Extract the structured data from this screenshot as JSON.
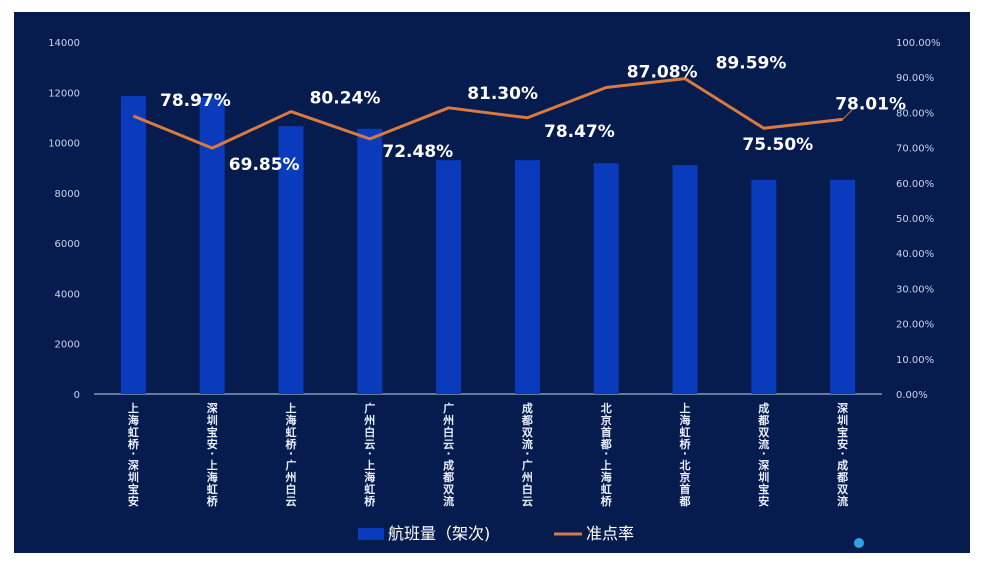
{
  "chart_data": {
    "type": "bar",
    "categories": [
      "上海虹桥-深圳宝安",
      "深圳宝安-上海虹桥",
      "上海虹桥-广州白云",
      "广州白云-上海虹桥",
      "广州白云-成都双流",
      "成都双流-广州白云",
      "北京首都-上海虹桥",
      "上海虹桥-北京首都",
      "成都双流-深圳宝安",
      "深圳宝安-成都双流"
    ],
    "series": [
      {
        "name": "航班量（架次)",
        "type": "bar",
        "axis": "left",
        "color": "#0b3bbd",
        "values": [
          11850,
          11800,
          10650,
          10550,
          9300,
          9300,
          9180,
          9100,
          8520,
          8520
        ]
      },
      {
        "name": "准点率",
        "type": "line",
        "axis": "right",
        "color": "#d97a3f",
        "values": [
          78.97,
          69.85,
          80.24,
          72.48,
          81.3,
          78.47,
          87.08,
          89.59,
          75.5,
          78.01
        ],
        "labels": [
          "78.97%",
          "69.85%",
          "80.24%",
          "72.48%",
          "81.30%",
          "78.47%",
          "87.08%",
          "89.59%",
          "75.50%",
          "78.01%"
        ]
      }
    ],
    "y_left": {
      "ylim": [
        0,
        14000
      ],
      "ticks": [
        "0",
        "2000",
        "4000",
        "6000",
        "8000",
        "10000",
        "12000",
        "14000"
      ]
    },
    "y_right": {
      "ylim": [
        0,
        100
      ],
      "ticks": [
        "0.00%",
        "10.00%",
        "20.00%",
        "30.00%",
        "40.00%",
        "50.00%",
        "60.00%",
        "70.00%",
        "80.00%",
        "90.00%",
        "100.00%"
      ]
    },
    "grid": false,
    "legend_position": "bottom"
  },
  "colors": {
    "background": "#061b4e",
    "bar": "#0b3bbd",
    "line": "#d97a3f",
    "axis": "#c9d3ea"
  }
}
